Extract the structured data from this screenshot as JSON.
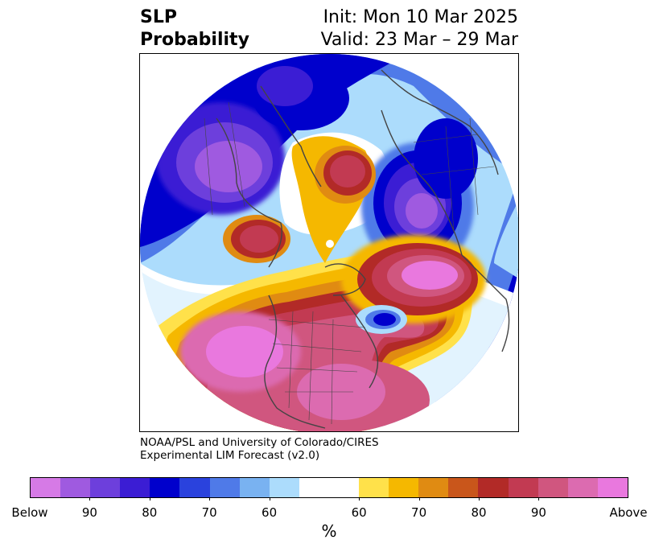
{
  "title": {
    "left_line1": "SLP",
    "left_line2": "Probability",
    "right_line1": "Init: Mon 10 Mar 2025",
    "right_line2": "Valid: 23 Mar – 29 Mar"
  },
  "credit": {
    "line1": "NOAA/PSL and University of Colorado/CIRES",
    "line2": "Experimental LIM Forecast (v2.0)"
  },
  "colorbar": {
    "unit": "%",
    "colors": [
      "#d67ae6",
      "#9f5ae0",
      "#6d3fdc",
      "#3b1dd4",
      "#0000cc",
      "#2a42dd",
      "#4f7ae8",
      "#79b2f1",
      "#acdcfc",
      "#ffffff",
      "#ffe14a",
      "#f5b800",
      "#e08b12",
      "#c9561b",
      "#b22a27",
      "#c23a52",
      "#d0567f",
      "#dc6bb0",
      "#e978de"
    ],
    "tick_labels": [
      "Below",
      "90",
      "80",
      "70",
      "60",
      "60",
      "70",
      "80",
      "90",
      "Above"
    ]
  },
  "map": {
    "projection": "north-polar-stereographic",
    "colors": {
      "below_outer": "#0000cc",
      "below_mid": "#4f7ae8",
      "below_light": "#acdcfc",
      "below_strong": "#9f5ae0",
      "above_yellow": "#ffe14a",
      "above_orange": "#e08b12",
      "above_red": "#b22a27",
      "above_pink": "#d0567f",
      "above_strong": "#e978de",
      "coastline": "#444444"
    }
  }
}
